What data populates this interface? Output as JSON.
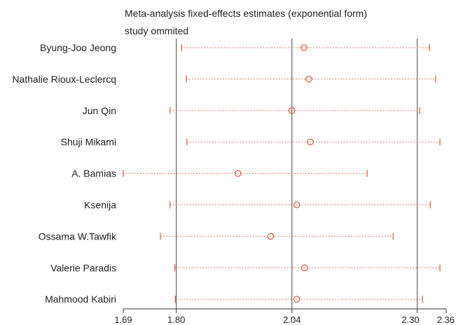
{
  "chart_data": {
    "type": "scatter",
    "title": "Meta-analysis fixed-effects estimates (exponential form)",
    "subtitle": "study ommited",
    "xlim": [
      1.69,
      2.36
    ],
    "xticks": [
      {
        "value": 1.69,
        "label": "1.69"
      },
      {
        "value": 1.8,
        "label": "1.80"
      },
      {
        "value": 2.04,
        "label": "2.04"
      },
      {
        "value": 2.3,
        "label": "2.30"
      },
      {
        "value": 2.36,
        "label": "2.36"
      }
    ],
    "reference_lines": [
      1.8,
      2.04,
      2.3
    ],
    "studies": [
      {
        "name": "Byung-Joo Jeong",
        "estimate": 2.065,
        "lower": 1.811,
        "upper": 2.325
      },
      {
        "name": "Nathalie Rioux-Leclercq",
        "estimate": 2.075,
        "lower": 1.821,
        "upper": 2.338
      },
      {
        "name": "Jun Qin",
        "estimate": 2.04,
        "lower": 1.787,
        "upper": 2.305
      },
      {
        "name": "Shuji Mikami",
        "estimate": 2.078,
        "lower": 1.822,
        "upper": 2.347
      },
      {
        "name": "A. Bamias",
        "estimate": 1.928,
        "lower": 1.69,
        "upper": 2.196
      },
      {
        "name": "Ksenija",
        "estimate": 2.05,
        "lower": 1.787,
        "upper": 2.327
      },
      {
        "name": "Ossama W.Tawfik",
        "estimate": 1.996,
        "lower": 1.767,
        "upper": 2.25
      },
      {
        "name": "Valerie Paradis",
        "estimate": 2.066,
        "lower": 1.797,
        "upper": 2.347
      },
      {
        "name": "Mahmood Kabiri",
        "estimate": 2.05,
        "lower": 1.798,
        "upper": 2.311
      }
    ],
    "colors": {
      "marker": "#d9583b",
      "reference_line": "#444444",
      "axis": "#333333",
      "text": "#222222"
    }
  }
}
